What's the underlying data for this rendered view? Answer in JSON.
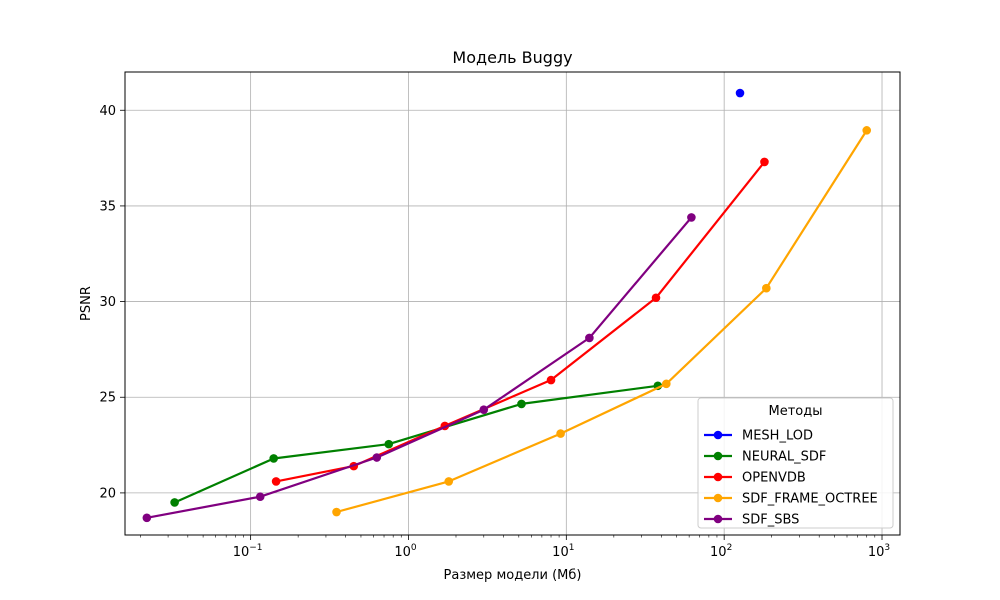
{
  "chart_data": {
    "type": "line",
    "title": "Модель Buggy",
    "xlabel": "Размер модели (Мб)",
    "ylabel": "PSNR",
    "xscale": "log",
    "xlim": [
      0.016,
      1300
    ],
    "ylim": [
      17.8,
      42.0
    ],
    "x_ticks": [
      {
        "value": 0.1,
        "base": "10",
        "exp": "−1"
      },
      {
        "value": 1,
        "base": "10",
        "exp": "0"
      },
      {
        "value": 10,
        "base": "10",
        "exp": "1"
      },
      {
        "value": 100,
        "base": "10",
        "exp": "2"
      },
      {
        "value": 1000,
        "base": "10",
        "exp": "3"
      }
    ],
    "y_ticks": [
      20,
      25,
      30,
      35,
      40
    ],
    "grid": true,
    "legend": {
      "title": "Методы",
      "placement": "lower-right"
    },
    "series": [
      {
        "name": "MESH_LOD",
        "color": "#0000ff",
        "x": [
          126
        ],
        "y": [
          40.9
        ]
      },
      {
        "name": "NEURAL_SDF",
        "color": "#008000",
        "x": [
          0.033,
          0.14,
          0.75,
          5.2,
          38
        ],
        "y": [
          19.5,
          21.8,
          22.55,
          24.65,
          25.6
        ]
      },
      {
        "name": "OPENVDB",
        "color": "#ff0000",
        "x": [
          0.145,
          0.45,
          1.7,
          8.0,
          37,
          180
        ],
        "y": [
          20.6,
          21.4,
          23.5,
          25.9,
          30.2,
          37.3
        ]
      },
      {
        "name": "SDF_FRAME_OCTREE",
        "color": "#ffa500",
        "x": [
          0.35,
          1.8,
          9.2,
          43,
          185,
          800
        ],
        "y": [
          19.0,
          20.6,
          23.1,
          25.7,
          30.7,
          38.95
        ]
      },
      {
        "name": "SDF_SBS",
        "color": "#800080",
        "x": [
          0.022,
          0.115,
          0.63,
          3.0,
          14,
          62
        ],
        "y": [
          18.7,
          19.8,
          21.85,
          24.35,
          28.1,
          34.4
        ]
      }
    ]
  }
}
